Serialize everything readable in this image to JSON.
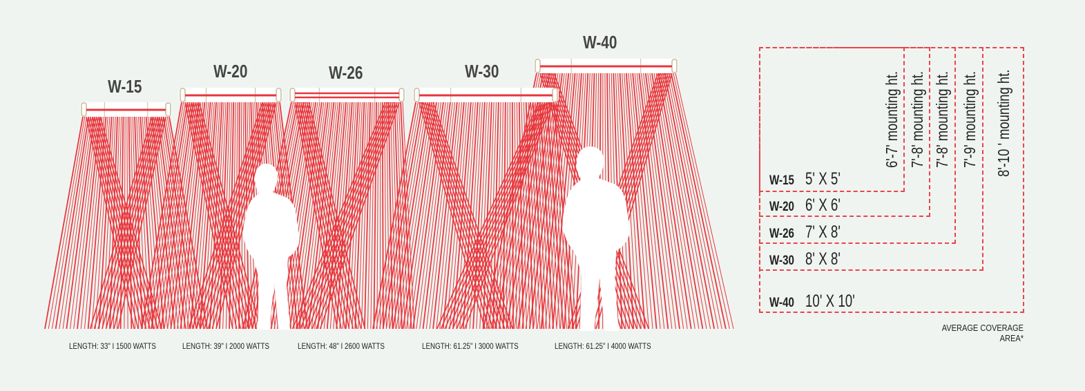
{
  "colors": {
    "ray": "#e8363c",
    "bar": "#e8363c",
    "cap": "#c8b89a",
    "background": "#f0f4f1",
    "dashed": "#e8444a"
  },
  "heaters": [
    {
      "model": "W-15",
      "length_label": "LENGTH: 33\" I 1500 WATTS"
    },
    {
      "model": "W-20",
      "length_label": "LENGTH: 39\" I 2000 WATTS"
    },
    {
      "model": "W-26",
      "length_label": "LENGTH: 48\" I 2600 WATTS"
    },
    {
      "model": "W-30",
      "length_label": "LENGTH: 61.25\" I 3000 WATTS"
    },
    {
      "model": "W-40",
      "length_label": "LENGTH: 61.25\" I 4000 WATTS"
    }
  ],
  "coverage": {
    "rows": [
      {
        "model": "W-15",
        "size": "5' X 5'",
        "mounting": "6'-7' mounting ht."
      },
      {
        "model": "W-20",
        "size": "6' X 6'",
        "mounting": "7'-8' mounting ht."
      },
      {
        "model": "W-26",
        "size": "7' X 8'",
        "mounting": "7'-8' mounting ht."
      },
      {
        "model": "W-30",
        "size": "8' X 8'",
        "mounting": "7'-9' mounting ht."
      },
      {
        "model": "W-40",
        "size": "10' X 10'",
        "mounting": "8'-10 ' mounting ht."
      }
    ],
    "note": "AVERAGE COVERAGE AREA*"
  }
}
